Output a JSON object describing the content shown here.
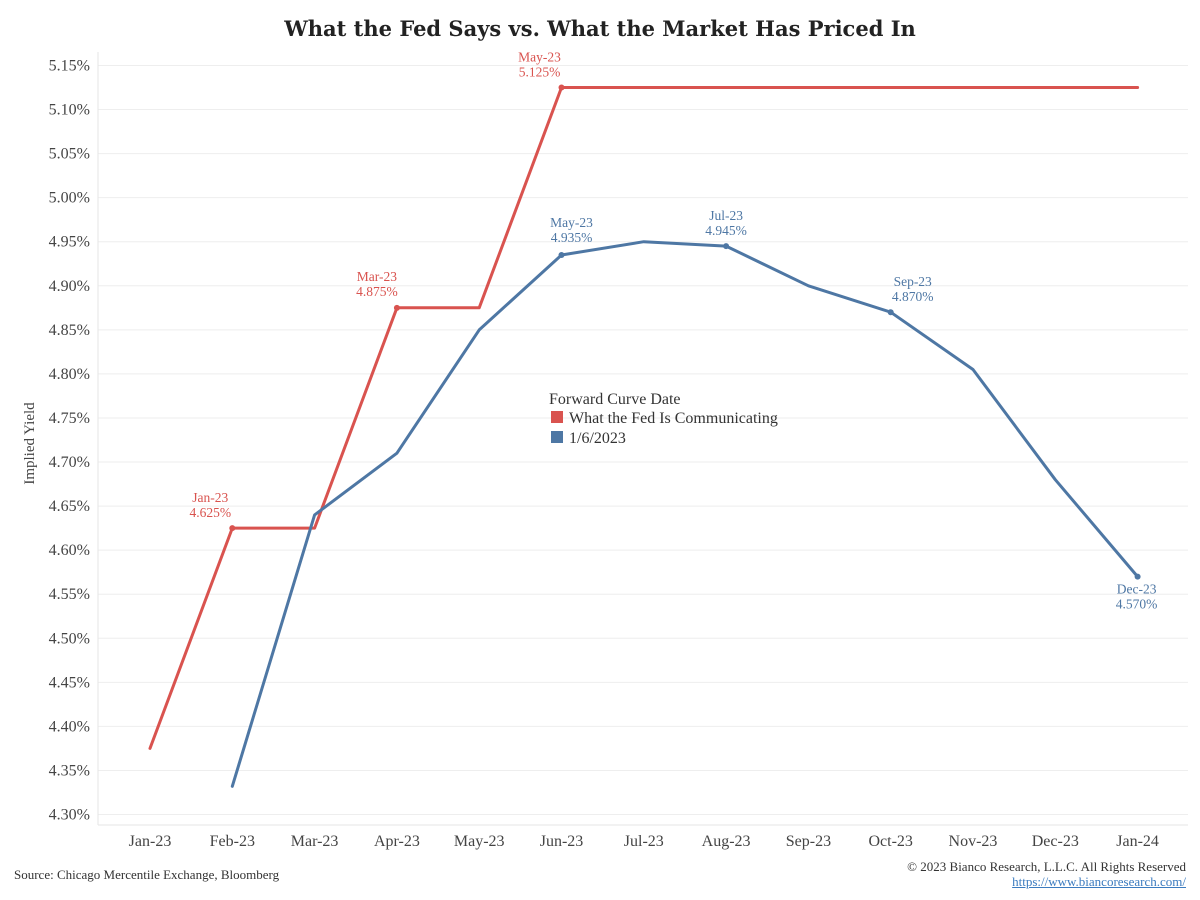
{
  "chart_data": {
    "type": "line",
    "title": "What the Fed Says vs. What the Market Has Priced In",
    "ylabel": "Implied Yield",
    "xlabel": "",
    "ylim": [
      4.3,
      5.15
    ],
    "yticks": [
      4.3,
      4.35,
      4.4,
      4.45,
      4.5,
      4.55,
      4.6,
      4.65,
      4.7,
      4.75,
      4.8,
      4.85,
      4.9,
      4.95,
      5.0,
      5.05,
      5.1,
      5.15
    ],
    "categories": [
      "Jan-23",
      "Feb-23",
      "Mar-23",
      "Apr-23",
      "May-23",
      "Jun-23",
      "Jul-23",
      "Aug-23",
      "Sep-23",
      "Oct-23",
      "Nov-23",
      "Dec-23",
      "Jan-24"
    ],
    "grid": "horizontal",
    "legend": {
      "title": "Forward Curve Date",
      "placement": "center"
    },
    "series": [
      {
        "name": "What the Fed Is Communicating",
        "color": "#d9534f",
        "values": [
          4.375,
          4.625,
          4.625,
          4.875,
          4.875,
          5.125,
          5.125,
          5.125,
          5.125,
          5.125,
          5.125,
          5.125,
          5.125
        ],
        "annotations": [
          {
            "index": 1,
            "label": "Jan-23",
            "value": "4.625%"
          },
          {
            "index": 3,
            "label": "Mar-23",
            "value": "4.875%"
          },
          {
            "index": 5,
            "label": "May-23",
            "value": "5.125%"
          }
        ]
      },
      {
        "name": "1/6/2023",
        "color": "#4e77a4",
        "values": [
          null,
          4.332,
          4.64,
          4.71,
          4.85,
          4.935,
          4.95,
          4.945,
          4.9,
          4.87,
          4.805,
          4.68,
          4.57
        ],
        "annotations": [
          {
            "index": 5,
            "label": "May-23",
            "value": "4.935%"
          },
          {
            "index": 7,
            "label": "Jul-23",
            "value": "4.945%"
          },
          {
            "index": 9,
            "label": "Sep-23",
            "value": "4.870%"
          },
          {
            "index": 12,
            "label": "Dec-23",
            "value": "4.570%"
          }
        ]
      }
    ]
  },
  "footer": {
    "source": "Source: Chicago Mercentile Exchange, Bloomberg",
    "copyright": "© 2023 Bianco Research, L.L.C. All Rights Reserved",
    "url": "https://www.biancoresearch.com/"
  }
}
